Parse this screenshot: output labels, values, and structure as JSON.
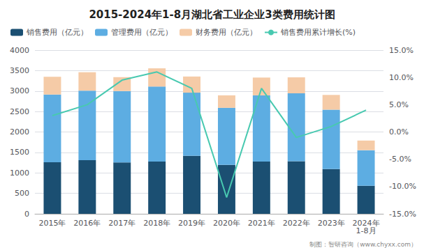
{
  "chart_data": {
    "type": "bar",
    "title": "2015-2024年1-8月湖北省工业企业3类费用统计图",
    "categories": [
      "2015年",
      "2016年",
      "2017年",
      "2018年",
      "2019年",
      "2020年",
      "2021年",
      "2022年",
      "2023年",
      "2024年\n1-8月"
    ],
    "series": [
      {
        "name": "销售费用（亿元）",
        "type": "bar",
        "color": "#1b4f72",
        "values": [
          1260,
          1310,
          1255,
          1275,
          1415,
          1195,
          1275,
          1285,
          1095,
          685
        ]
      },
      {
        "name": "管理费用（亿元）",
        "type": "bar",
        "color": "#5dade2",
        "values": [
          1655,
          1700,
          1745,
          1835,
          1545,
          1395,
          1620,
          1660,
          1450,
          870
        ]
      },
      {
        "name": "财务费用（亿元）",
        "type": "bar",
        "color": "#f5cba7",
        "values": [
          435,
          450,
          340,
          445,
          395,
          305,
          435,
          390,
          360,
          235
        ]
      },
      {
        "name": "销售费用累计增长(%)",
        "type": "line",
        "axis": "y2",
        "color": "#48c9b0",
        "values": [
          3.0,
          5.0,
          9.5,
          11.0,
          8.0,
          -12.0,
          8.0,
          -1.0,
          1.0,
          4.0
        ]
      }
    ],
    "stacked": true,
    "ylim": [
      0,
      4000
    ],
    "yticks": [
      0,
      500,
      1000,
      1500,
      2000,
      2500,
      3000,
      3500,
      4000
    ],
    "y2lim": [
      -15.0,
      15.0
    ],
    "y2ticks": [
      {
        "value": -15.0,
        "label": "-15.0%"
      },
      {
        "value": -10.0,
        "label": "-10.0%"
      },
      {
        "value": -5.0,
        "label": "-5.0%"
      },
      {
        "value": 0.0,
        "label": "0.0%"
      },
      {
        "value": 5.0,
        "label": "5.0%"
      },
      {
        "value": 10.0,
        "label": "10.0%"
      },
      {
        "value": 15.0,
        "label": "15.0%"
      }
    ],
    "grid": true,
    "legend": "upper left",
    "annotations": [
      "制图：智研咨询（www.chyxx.com）"
    ]
  }
}
